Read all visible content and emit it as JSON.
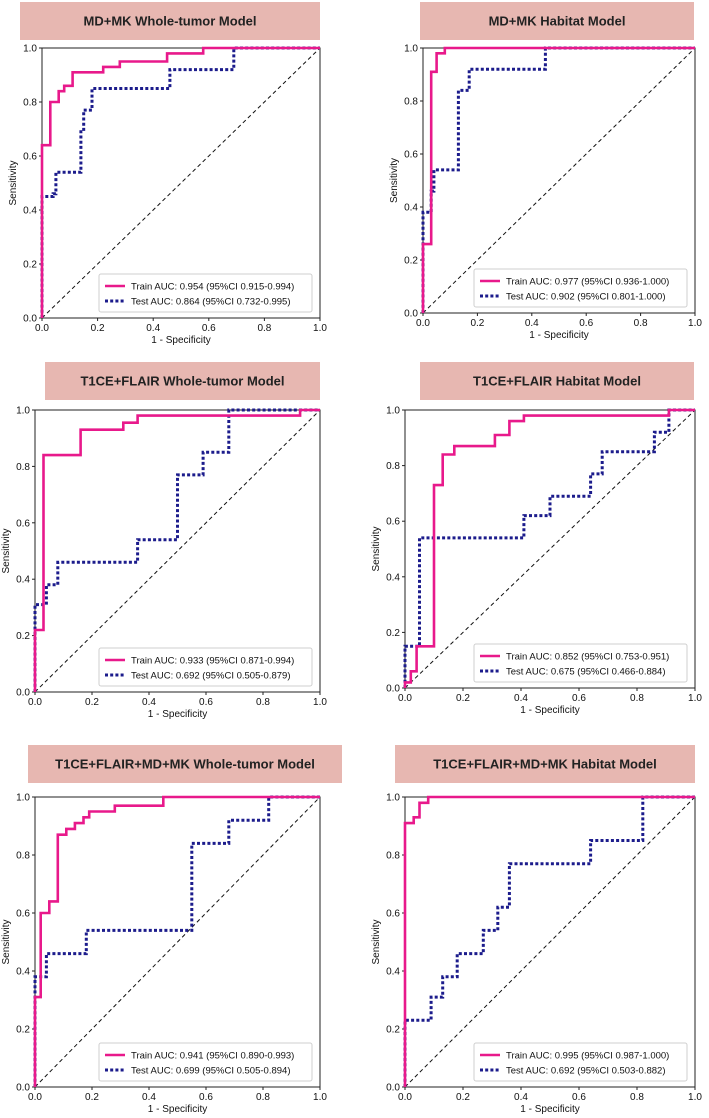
{
  "figure": {
    "description_none": null
  },
  "chart_data": [
    {
      "type": "line",
      "title": "MD+MK Whole-tumor Model",
      "xlabel": "1 - Specificity",
      "ylabel": "Sensitivity",
      "xlim": [
        0,
        1
      ],
      "ylim": [
        0,
        1
      ],
      "xticks": [
        "0.0",
        "0.2",
        "0.4",
        "0.6",
        "0.8",
        "1.0"
      ],
      "yticks": [
        "0.0",
        "0.2",
        "0.4",
        "0.6",
        "0.8",
        "1.0"
      ],
      "legend_position": "lower-right",
      "series": [
        {
          "name": "Train AUC: 0.954 (95%CI 0.915-0.994)",
          "color": "#e8198b",
          "style": "solid",
          "points": [
            [
              0,
              0
            ],
            [
              0,
              0.64
            ],
            [
              0.03,
              0.64
            ],
            [
              0.03,
              0.8
            ],
            [
              0.06,
              0.8
            ],
            [
              0.06,
              0.84
            ],
            [
              0.08,
              0.84
            ],
            [
              0.08,
              0.86
            ],
            [
              0.11,
              0.86
            ],
            [
              0.11,
              0.91
            ],
            [
              0.22,
              0.91
            ],
            [
              0.22,
              0.93
            ],
            [
              0.28,
              0.93
            ],
            [
              0.28,
              0.95
            ],
            [
              0.45,
              0.95
            ],
            [
              0.45,
              0.98
            ],
            [
              0.58,
              0.98
            ],
            [
              0.58,
              1.0
            ],
            [
              1,
              1
            ]
          ]
        },
        {
          "name": "Test AUC: 0.864 (95%CI 0.732-0.995)",
          "color": "#1c1c8c",
          "style": "dotted",
          "points": [
            [
              0,
              0
            ],
            [
              0,
              0.45
            ],
            [
              0.04,
              0.45
            ],
            [
              0.04,
              0.46
            ],
            [
              0.05,
              0.46
            ],
            [
              0.05,
              0.54
            ],
            [
              0.14,
              0.54
            ],
            [
              0.14,
              0.69
            ],
            [
              0.15,
              0.69
            ],
            [
              0.15,
              0.77
            ],
            [
              0.18,
              0.77
            ],
            [
              0.18,
              0.85
            ],
            [
              0.46,
              0.85
            ],
            [
              0.46,
              0.92
            ],
            [
              0.69,
              0.92
            ],
            [
              0.69,
              1.0
            ],
            [
              1,
              1
            ]
          ]
        }
      ]
    },
    {
      "type": "line",
      "title": "MD+MK Habitat Model",
      "xlabel": "1 - Specificity",
      "ylabel": "Sensitivity",
      "xlim": [
        0,
        1
      ],
      "ylim": [
        0,
        1
      ],
      "xticks": [
        "0.0",
        "0.2",
        "0.4",
        "0.6",
        "0.8",
        "1.0"
      ],
      "yticks": [
        "0.0",
        "0.2",
        "0.4",
        "0.6",
        "0.8",
        "1.0"
      ],
      "legend_position": "lower-right",
      "series": [
        {
          "name": "Train AUC: 0.977 (95%CI 0.936-1.000)",
          "color": "#e8198b",
          "style": "solid",
          "points": [
            [
              0,
              0
            ],
            [
              0,
              0.26
            ],
            [
              0.03,
              0.26
            ],
            [
              0.03,
              0.91
            ],
            [
              0.05,
              0.91
            ],
            [
              0.05,
              0.98
            ],
            [
              0.08,
              0.98
            ],
            [
              0.08,
              1.0
            ],
            [
              1,
              1
            ]
          ]
        },
        {
          "name": "Test AUC: 0.902 (95%CI 0.801-1.000)",
          "color": "#1c1c8c",
          "style": "dotted",
          "points": [
            [
              0,
              0
            ],
            [
              0,
              0.38
            ],
            [
              0.03,
              0.38
            ],
            [
              0.03,
              0.46
            ],
            [
              0.04,
              0.46
            ],
            [
              0.04,
              0.54
            ],
            [
              0.13,
              0.54
            ],
            [
              0.13,
              0.84
            ],
            [
              0.17,
              0.84
            ],
            [
              0.17,
              0.92
            ],
            [
              0.45,
              0.92
            ],
            [
              0.45,
              1.0
            ],
            [
              1,
              1
            ]
          ]
        }
      ]
    },
    {
      "type": "line",
      "title": "T1CE+FLAIR Whole-tumor Model",
      "xlabel": "1 - Specificity",
      "ylabel": "Sensitivity",
      "xlim": [
        0,
        1
      ],
      "ylim": [
        0,
        1
      ],
      "xticks": [
        "0.0",
        "0.2",
        "0.4",
        "0.6",
        "0.8",
        "1.0"
      ],
      "yticks": [
        "0.0",
        "0.2",
        "0.4",
        "0.6",
        "0.8",
        "1.0"
      ],
      "legend_position": "lower-right",
      "series": [
        {
          "name": "Train AUC: 0.933 (95%CI 0.871-0.994)",
          "color": "#e8198b",
          "style": "solid",
          "points": [
            [
              0,
              0
            ],
            [
              0,
              0.22
            ],
            [
              0.03,
              0.22
            ],
            [
              0.03,
              0.84
            ],
            [
              0.16,
              0.84
            ],
            [
              0.16,
              0.93
            ],
            [
              0.31,
              0.93
            ],
            [
              0.31,
              0.955
            ],
            [
              0.36,
              0.955
            ],
            [
              0.36,
              0.98
            ],
            [
              0.93,
              0.98
            ],
            [
              0.93,
              1.0
            ],
            [
              1,
              1
            ]
          ]
        },
        {
          "name": "Test AUC: 0.692 (95%CI 0.505-0.879)",
          "color": "#1c1c8c",
          "style": "dotted",
          "points": [
            [
              0,
              0
            ],
            [
              0,
              0.31
            ],
            [
              0.04,
              0.31
            ],
            [
              0.04,
              0.38
            ],
            [
              0.08,
              0.38
            ],
            [
              0.08,
              0.46
            ],
            [
              0.36,
              0.46
            ],
            [
              0.36,
              0.54
            ],
            [
              0.5,
              0.54
            ],
            [
              0.5,
              0.77
            ],
            [
              0.59,
              0.77
            ],
            [
              0.59,
              0.85
            ],
            [
              0.68,
              0.85
            ],
            [
              0.68,
              1.0
            ],
            [
              1,
              1
            ]
          ]
        }
      ]
    },
    {
      "type": "line",
      "title": "T1CE+FLAIR Habitat Model",
      "xlabel": "1 - Specificity",
      "ylabel": "Sensitivity",
      "xlim": [
        0,
        1
      ],
      "ylim": [
        0,
        1
      ],
      "xticks": [
        "0.0",
        "0.2",
        "0.4",
        "0.6",
        "0.8",
        "1.0"
      ],
      "yticks": [
        "0.0",
        "0.2",
        "0.4",
        "0.6",
        "0.8",
        "1.0"
      ],
      "legend_position": "lower-right",
      "series": [
        {
          "name": "Train AUC: 0.852 (95%CI 0.753-0.951)",
          "color": "#e8198b",
          "style": "solid",
          "points": [
            [
              0,
              0
            ],
            [
              0,
              0.02
            ],
            [
              0.02,
              0.02
            ],
            [
              0.02,
              0.06
            ],
            [
              0.04,
              0.06
            ],
            [
              0.04,
              0.15
            ],
            [
              0.1,
              0.15
            ],
            [
              0.1,
              0.73
            ],
            [
              0.13,
              0.73
            ],
            [
              0.13,
              0.84
            ],
            [
              0.17,
              0.84
            ],
            [
              0.17,
              0.87
            ],
            [
              0.31,
              0.87
            ],
            [
              0.31,
              0.91
            ],
            [
              0.36,
              0.91
            ],
            [
              0.36,
              0.96
            ],
            [
              0.41,
              0.96
            ],
            [
              0.41,
              0.98
            ],
            [
              0.91,
              0.98
            ],
            [
              0.91,
              1.0
            ],
            [
              1,
              1
            ]
          ]
        },
        {
          "name": "Test AUC: 0.675 (95%CI 0.466-0.884)",
          "color": "#1c1c8c",
          "style": "dotted",
          "points": [
            [
              0,
              0
            ],
            [
              0,
              0.15
            ],
            [
              0.05,
              0.15
            ],
            [
              0.05,
              0.54
            ],
            [
              0.41,
              0.54
            ],
            [
              0.41,
              0.62
            ],
            [
              0.5,
              0.62
            ],
            [
              0.5,
              0.69
            ],
            [
              0.64,
              0.69
            ],
            [
              0.64,
              0.77
            ],
            [
              0.68,
              0.77
            ],
            [
              0.68,
              0.85
            ],
            [
              0.86,
              0.85
            ],
            [
              0.86,
              0.92
            ],
            [
              0.91,
              0.92
            ],
            [
              0.91,
              1.0
            ],
            [
              1,
              1
            ]
          ]
        }
      ]
    },
    {
      "type": "line",
      "title": "T1CE+FLAIR+MD+MK Whole-tumor Model",
      "xlabel": "1 - Specificity",
      "ylabel": "Sensitivity",
      "xlim": [
        0,
        1
      ],
      "ylim": [
        0,
        1
      ],
      "xticks": [
        "0.0",
        "0.2",
        "0.4",
        "0.6",
        "0.8",
        "1.0"
      ],
      "yticks": [
        "0.0",
        "0.2",
        "0.4",
        "0.6",
        "0.8",
        "1.0"
      ],
      "legend_position": "lower-right",
      "series": [
        {
          "name": "Train AUC: 0.941 (95%CI 0.890-0.993)",
          "color": "#e8198b",
          "style": "solid",
          "points": [
            [
              0,
              0
            ],
            [
              0,
              0.31
            ],
            [
              0.02,
              0.31
            ],
            [
              0.02,
              0.6
            ],
            [
              0.05,
              0.6
            ],
            [
              0.05,
              0.64
            ],
            [
              0.08,
              0.64
            ],
            [
              0.08,
              0.87
            ],
            [
              0.11,
              0.87
            ],
            [
              0.11,
              0.89
            ],
            [
              0.14,
              0.89
            ],
            [
              0.14,
              0.91
            ],
            [
              0.17,
              0.91
            ],
            [
              0.17,
              0.93
            ],
            [
              0.19,
              0.93
            ],
            [
              0.19,
              0.95
            ],
            [
              0.28,
              0.95
            ],
            [
              0.28,
              0.97
            ],
            [
              0.45,
              0.97
            ],
            [
              0.45,
              1.0
            ],
            [
              1,
              1
            ]
          ]
        },
        {
          "name": "Test AUC: 0.699 (95%CI 0.505-0.894)",
          "color": "#1c1c8c",
          "style": "dotted",
          "points": [
            [
              0,
              0
            ],
            [
              0,
              0.38
            ],
            [
              0.04,
              0.38
            ],
            [
              0.04,
              0.46
            ],
            [
              0.18,
              0.46
            ],
            [
              0.18,
              0.54
            ],
            [
              0.55,
              0.54
            ],
            [
              0.55,
              0.84
            ],
            [
              0.68,
              0.84
            ],
            [
              0.68,
              0.92
            ],
            [
              0.82,
              0.92
            ],
            [
              0.82,
              1.0
            ],
            [
              1,
              1
            ]
          ]
        }
      ]
    },
    {
      "type": "line",
      "title": "T1CE+FLAIR+MD+MK Habitat Model",
      "xlabel": "1 - Specificity",
      "ylabel": "Sensitivity",
      "xlim": [
        0,
        1
      ],
      "ylim": [
        0,
        1
      ],
      "xticks": [
        "0.0",
        "0.2",
        "0.4",
        "0.6",
        "0.8",
        "1.0"
      ],
      "yticks": [
        "0.0",
        "0.2",
        "0.4",
        "0.6",
        "0.8",
        "1.0"
      ],
      "legend_position": "lower-right",
      "series": [
        {
          "name": "Train AUC: 0.995 (95%CI 0.987-1.000)",
          "color": "#e8198b",
          "style": "solid",
          "points": [
            [
              0,
              0
            ],
            [
              0,
              0.91
            ],
            [
              0.03,
              0.91
            ],
            [
              0.03,
              0.93
            ],
            [
              0.05,
              0.93
            ],
            [
              0.05,
              0.98
            ],
            [
              0.08,
              0.98
            ],
            [
              0.08,
              1.0
            ],
            [
              1,
              1
            ]
          ]
        },
        {
          "name": "Test AUC: 0.692 (95%CI 0.503-0.882)",
          "color": "#1c1c8c",
          "style": "dotted",
          "points": [
            [
              0,
              0
            ],
            [
              0,
              0.23
            ],
            [
              0.09,
              0.23
            ],
            [
              0.09,
              0.31
            ],
            [
              0.13,
              0.31
            ],
            [
              0.13,
              0.38
            ],
            [
              0.18,
              0.38
            ],
            [
              0.18,
              0.46
            ],
            [
              0.27,
              0.46
            ],
            [
              0.27,
              0.54
            ],
            [
              0.32,
              0.54
            ],
            [
              0.32,
              0.62
            ],
            [
              0.36,
              0.62
            ],
            [
              0.36,
              0.77
            ],
            [
              0.64,
              0.77
            ],
            [
              0.64,
              0.85
            ],
            [
              0.82,
              0.85
            ],
            [
              0.82,
              1.0
            ],
            [
              1,
              1
            ]
          ]
        }
      ]
    }
  ]
}
